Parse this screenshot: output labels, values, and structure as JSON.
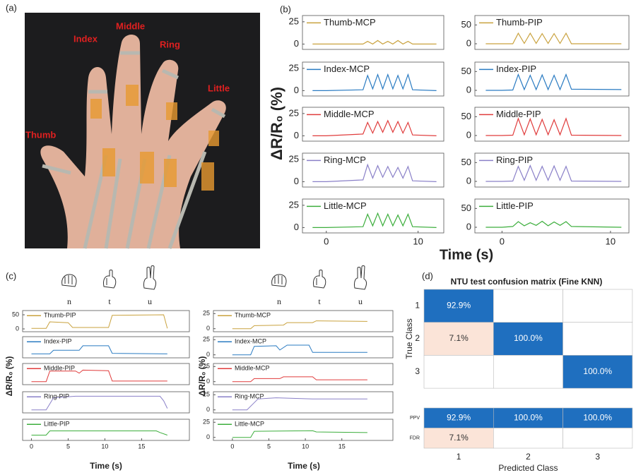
{
  "figure": {
    "panel_labels": [
      "(a)",
      "(b)",
      "(c)",
      "(d)"
    ],
    "finger_labels": [
      "Index",
      "Middle",
      "Ring",
      "Little",
      "Thumb"
    ],
    "gesture_letters": [
      "n",
      "t",
      "u"
    ],
    "b_ylabel": "ΔR/R₀ (%)",
    "b_xlabel": "Time (s)",
    "c_ylabel": "ΔR/R₀ (%)",
    "c_xlabel": "Time (s)"
  },
  "chart_data": [
    {
      "type": "line",
      "xlim": [
        -2.6,
        12.8
      ],
      "ylim": [
        -6,
        32
      ],
      "yticks": [
        0,
        25
      ],
      "x": [
        -1.5,
        0,
        4.0,
        4.5,
        5.05,
        5.6,
        6.15,
        6.7,
        7.25,
        7.8,
        8.35,
        8.9,
        9.4,
        12
      ],
      "series": [
        {
          "name": "Thumb-MCP",
          "color": "#c9a23e",
          "values": [
            0,
            0,
            0,
            3,
            0,
            4,
            0,
            3,
            0,
            4,
            0,
            3,
            0,
            0
          ]
        }
      ]
    },
    {
      "type": "line",
      "xlim": [
        -2.6,
        12.8
      ],
      "ylim": [
        -6,
        32
      ],
      "yticks": [
        0,
        25
      ],
      "x": [
        -1.5,
        0,
        4.0,
        4.5,
        5.05,
        5.6,
        6.15,
        6.7,
        7.25,
        7.8,
        8.35,
        8.9,
        9.4,
        12
      ],
      "series": [
        {
          "name": "Index-MCP",
          "color": "#2a7bc2",
          "values": [
            0,
            0,
            1,
            17,
            2,
            18,
            2,
            18,
            2,
            17,
            2,
            18,
            1,
            0
          ]
        }
      ]
    },
    {
      "type": "line",
      "xlim": [
        -2.6,
        12.8
      ],
      "ylim": [
        -6,
        32
      ],
      "yticks": [
        0,
        25
      ],
      "x": [
        -1.5,
        0,
        4.0,
        4.5,
        5.05,
        5.6,
        6.15,
        6.7,
        7.25,
        7.8,
        8.35,
        8.9,
        9.4,
        12
      ],
      "series": [
        {
          "name": "Middle-MCP",
          "color": "#e03c3c",
          "values": [
            0,
            0,
            2,
            15,
            3,
            16,
            4,
            17,
            4,
            16,
            3,
            15,
            1,
            0
          ]
        }
      ]
    },
    {
      "type": "line",
      "xlim": [
        -2.6,
        12.8
      ],
      "ylim": [
        -6,
        32
      ],
      "yticks": [
        0,
        25
      ],
      "x": [
        -1.5,
        0,
        4.0,
        4.5,
        5.05,
        5.6,
        6.15,
        6.7,
        7.25,
        7.8,
        8.35,
        8.9,
        9.4,
        12
      ],
      "series": [
        {
          "name": "Ring-MCP",
          "color": "#8a80c8",
          "values": [
            0,
            0,
            2,
            19,
            4,
            18,
            5,
            17,
            5,
            16,
            4,
            17,
            1,
            0
          ]
        }
      ]
    },
    {
      "type": "line",
      "xlim": [
        -2.6,
        12.8
      ],
      "ylim": [
        -6,
        32
      ],
      "yticks": [
        0,
        25
      ],
      "xticks": [
        0,
        10
      ],
      "x": [
        -1.5,
        0,
        4.0,
        4.5,
        5.05,
        5.6,
        6.15,
        6.7,
        7.25,
        7.8,
        8.35,
        8.9,
        9.4,
        12
      ],
      "series": [
        {
          "name": "Little-MCP",
          "color": "#3cae3c",
          "values": [
            0,
            0,
            1,
            15,
            2,
            16,
            2,
            15,
            2,
            14,
            2,
            15,
            1,
            0
          ]
        }
      ]
    },
    {
      "type": "line",
      "xlim": [
        -2.5,
        11.7
      ],
      "ylim": [
        -15,
        75
      ],
      "yticks": [
        0,
        50
      ],
      "x": [
        -1.5,
        0,
        1.0,
        1.5,
        2.05,
        2.6,
        3.15,
        3.7,
        4.25,
        4.8,
        5.35,
        5.9,
        6.4,
        11
      ],
      "series": [
        {
          "name": "Thumb-PIP",
          "color": "#c9a23e",
          "values": [
            0,
            0,
            0,
            28,
            1,
            28,
            1,
            27,
            1,
            27,
            1,
            28,
            0,
            0
          ]
        }
      ]
    },
    {
      "type": "line",
      "xlim": [
        -2.5,
        11.7
      ],
      "ylim": [
        -15,
        75
      ],
      "yticks": [
        0,
        50
      ],
      "x": [
        -1.5,
        0,
        1.0,
        1.5,
        2.05,
        2.6,
        3.15,
        3.7,
        4.25,
        4.8,
        5.35,
        5.9,
        6.4,
        11
      ],
      "series": [
        {
          "name": "Index-PIP",
          "color": "#2a7bc2",
          "values": [
            0,
            0,
            1,
            42,
            2,
            40,
            2,
            41,
            2,
            40,
            2,
            42,
            3,
            2
          ]
        }
      ]
    },
    {
      "type": "line",
      "xlim": [
        -2.5,
        11.7
      ],
      "ylim": [
        -15,
        75
      ],
      "yticks": [
        0,
        50
      ],
      "x": [
        -1.5,
        0,
        1.0,
        1.5,
        2.05,
        2.6,
        3.15,
        3.7,
        4.25,
        4.8,
        5.35,
        5.9,
        6.4,
        11
      ],
      "series": [
        {
          "name": "Middle-PIP",
          "color": "#e03c3c",
          "values": [
            0,
            0,
            1,
            45,
            2,
            44,
            2,
            43,
            2,
            42,
            2,
            45,
            1,
            0
          ]
        }
      ]
    },
    {
      "type": "line",
      "xlim": [
        -2.5,
        11.7
      ],
      "ylim": [
        -15,
        75
      ],
      "yticks": [
        0,
        50
      ],
      "x": [
        -1.5,
        0,
        1.0,
        1.5,
        2.05,
        2.6,
        3.15,
        3.7,
        4.25,
        4.8,
        5.35,
        5.9,
        6.4,
        11
      ],
      "series": [
        {
          "name": "Ring-PIP",
          "color": "#8a80c8",
          "values": [
            0,
            0,
            1,
            40,
            3,
            42,
            3,
            40,
            3,
            41,
            3,
            40,
            1,
            0
          ]
        }
      ]
    },
    {
      "type": "line",
      "xlim": [
        -2.5,
        11.7
      ],
      "ylim": [
        -15,
        75
      ],
      "yticks": [
        0,
        50
      ],
      "xticks": [
        0,
        10
      ],
      "x": [
        -1.5,
        0,
        1.0,
        1.5,
        2.05,
        2.6,
        3.15,
        3.7,
        4.25,
        4.8,
        5.35,
        5.9,
        6.4,
        11
      ],
      "series": [
        {
          "name": "Little-PIP",
          "color": "#3cae3c",
          "values": [
            0,
            0,
            2,
            15,
            4,
            12,
            5,
            16,
            4,
            14,
            5,
            15,
            2,
            0
          ]
        }
      ]
    },
    {
      "type": "line",
      "xlim": [
        -1.2,
        21.5
      ],
      "ylim": [
        -10,
        65
      ],
      "yticks": [
        0,
        50
      ],
      "x": [
        0,
        2,
        2.5,
        5,
        5.6,
        10.5,
        11,
        18,
        18.5
      ],
      "series": [
        {
          "name": "Thumb-PIP",
          "color": "#c9a23e",
          "values": [
            2,
            2,
            25,
            22,
            5,
            5,
            48,
            50,
            2
          ]
        }
      ]
    },
    {
      "type": "line",
      "xlim": [
        -1.2,
        21.5
      ],
      "ylim": [
        -10,
        60
      ],
      "x": [
        0,
        2.5,
        3,
        6.5,
        7,
        10.5,
        11,
        18.5
      ],
      "series": [
        {
          "name": "Index-PIP",
          "color": "#2a7bc2",
          "values": [
            3,
            3,
            15,
            15,
            30,
            30,
            5,
            3
          ]
        }
      ]
    },
    {
      "type": "line",
      "xlim": [
        -1.2,
        21.5
      ],
      "ylim": [
        -10,
        60
      ],
      "x": [
        0,
        2,
        2.5,
        6,
        6.5,
        7,
        10.5,
        11,
        18.5
      ],
      "series": [
        {
          "name": "Middle-PIP",
          "color": "#e03c3c",
          "values": [
            0,
            0,
            35,
            35,
            28,
            38,
            36,
            2,
            2
          ]
        }
      ]
    },
    {
      "type": "line",
      "xlim": [
        -1.2,
        21.5
      ],
      "ylim": [
        -10,
        60
      ],
      "x": [
        0,
        2,
        3,
        6,
        17.5,
        18,
        18.5
      ],
      "series": [
        {
          "name": "Ring-PIP",
          "color": "#8a80c8",
          "values": [
            0,
            0,
            40,
            45,
            45,
            30,
            5
          ]
        }
      ]
    },
    {
      "type": "line",
      "xlim": [
        -1.2,
        21.5
      ],
      "ylim": [
        -10,
        30
      ],
      "xticks": [
        0,
        5,
        10,
        15
      ],
      "x": [
        0,
        2,
        2.5,
        17,
        17.5,
        18.5
      ],
      "series": [
        {
          "name": "Little-PIP",
          "color": "#3cae3c",
          "values": [
            0,
            0,
            8,
            8,
            5,
            0
          ]
        }
      ]
    },
    {
      "type": "line",
      "xlim": [
        -2.6,
        22
      ],
      "ylim": [
        -5,
        30
      ],
      "yticks": [
        0,
        25
      ],
      "x": [
        0,
        2.5,
        3,
        7,
        7.5,
        11,
        11.5,
        18.5
      ],
      "series": [
        {
          "name": "Thumb-MCP",
          "color": "#c9a23e",
          "values": [
            0,
            0,
            5,
            6,
            10,
            10,
            13,
            12
          ]
        }
      ]
    },
    {
      "type": "line",
      "xlim": [
        -2.6,
        22
      ],
      "ylim": [
        -5,
        30
      ],
      "yticks": [
        0,
        25
      ],
      "x": [
        0,
        2.5,
        3,
        6,
        6.5,
        7.5,
        10.5,
        11,
        18.5
      ],
      "series": [
        {
          "name": "Index-MCP",
          "color": "#2a7bc2",
          "values": [
            0,
            0,
            14,
            15,
            8,
            16,
            16,
            4,
            4
          ]
        }
      ]
    },
    {
      "type": "line",
      "xlim": [
        -2.6,
        22
      ],
      "ylim": [
        -5,
        30
      ],
      "yticks": [
        0,
        25
      ],
      "x": [
        0,
        2.5,
        3,
        6.5,
        7,
        11,
        11.5,
        18.5
      ],
      "series": [
        {
          "name": "Middle-MCP",
          "color": "#e03c3c",
          "values": [
            0,
            0,
            5,
            5,
            8,
            8,
            3,
            3
          ]
        }
      ]
    },
    {
      "type": "line",
      "xlim": [
        -2.6,
        22
      ],
      "ylim": [
        -5,
        30
      ],
      "yticks": [
        0,
        25
      ],
      "x": [
        0,
        2,
        3.5,
        6,
        11,
        18.5
      ],
      "series": [
        {
          "name": "Ring-MCP",
          "color": "#8a80c8",
          "values": [
            0,
            0,
            18,
            20,
            18,
            18
          ]
        }
      ]
    },
    {
      "type": "line",
      "xlim": [
        -2.6,
        22
      ],
      "ylim": [
        -5,
        30
      ],
      "yticks": [
        0,
        25
      ],
      "xticks": [
        0,
        5,
        10,
        15
      ],
      "x": [
        0,
        2.5,
        3,
        11,
        11.5,
        18.5
      ],
      "series": [
        {
          "name": "Little-MCP",
          "color": "#3cae3c",
          "values": [
            0,
            0,
            10,
            11,
            9,
            8
          ]
        }
      ]
    },
    {
      "type": "heatmap",
      "title": "NTU test confusion matrix (Fine KNN)",
      "xlabel": "Predicted Class",
      "ylabel": "True Class",
      "categories": [
        "1",
        "2",
        "3"
      ],
      "values": [
        [
          92.9,
          null,
          null
        ],
        [
          7.1,
          100,
          null
        ],
        [
          null,
          null,
          100
        ]
      ],
      "value_labels": [
        [
          "92.9%",
          null,
          null
        ],
        [
          "7.1%",
          "100.0%",
          null
        ],
        [
          null,
          null,
          "100.0%"
        ]
      ],
      "summary_rows": [
        {
          "name": "PPV",
          "values": [
            92.9,
            100,
            100
          ],
          "value_labels": [
            "92.9%",
            "100.0%",
            "100.0%"
          ]
        },
        {
          "name": "FDR",
          "values": [
            7.1,
            null,
            null
          ],
          "value_labels": [
            "7.1%",
            null,
            null
          ]
        }
      ],
      "colors": {
        "high": "#1f6fbf",
        "low": "#fbe4d8"
      },
      "threshold": 50
    }
  ]
}
